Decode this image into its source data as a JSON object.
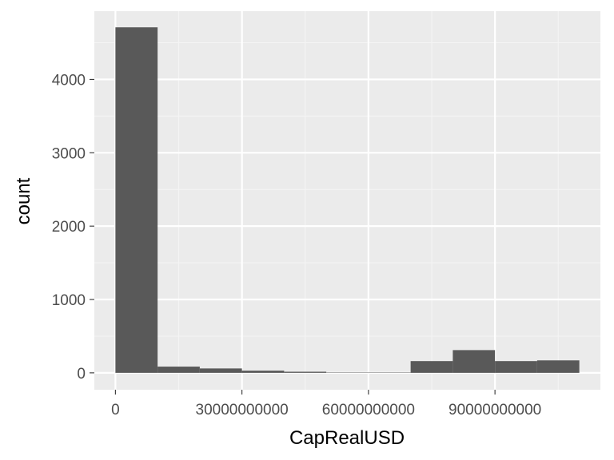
{
  "chart_data": {
    "type": "bar",
    "xlabel": "CapRealUSD",
    "ylabel": "count",
    "xlim": [
      -5000000000,
      115000000000
    ],
    "ylim": [
      -230,
      4930
    ],
    "x_ticks": [
      0,
      30000000000,
      60000000000,
      90000000000
    ],
    "x_tick_labels": [
      "0",
      "30000000000",
      "60000000000",
      "90000000000"
    ],
    "y_ticks": [
      0,
      1000,
      2000,
      3000,
      4000
    ],
    "y_tick_labels": [
      "0",
      "1000",
      "2000",
      "3000",
      "4000"
    ],
    "grid": true,
    "bin_width": 10000000000,
    "bins": [
      {
        "start": 0,
        "end": 10000000000,
        "count": 4710
      },
      {
        "start": 10000000000,
        "end": 20000000000,
        "count": 85
      },
      {
        "start": 20000000000,
        "end": 30000000000,
        "count": 60
      },
      {
        "start": 30000000000,
        "end": 40000000000,
        "count": 30
      },
      {
        "start": 40000000000,
        "end": 50000000000,
        "count": 15
      },
      {
        "start": 50000000000,
        "end": 60000000000,
        "count": 5
      },
      {
        "start": 60000000000,
        "end": 70000000000,
        "count": 5
      },
      {
        "start": 70000000000,
        "end": 80000000000,
        "count": 160
      },
      {
        "start": 80000000000,
        "end": 90000000000,
        "count": 310
      },
      {
        "start": 90000000000,
        "end": 100000000000,
        "count": 160
      },
      {
        "start": 100000000000,
        "end": 110000000000,
        "count": 170
      }
    ],
    "colors": {
      "panel": "#ebebeb",
      "grid_major": "#ffffff",
      "grid_minor": "#f4f4f4",
      "bar": "#595959"
    }
  }
}
